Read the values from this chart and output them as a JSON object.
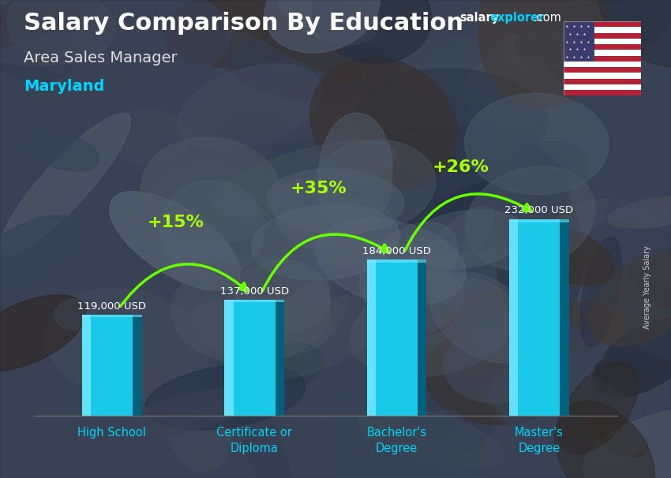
{
  "title": "Salary Comparison By Education",
  "subtitle": "Area Sales Manager",
  "location": "Maryland",
  "ylabel": "Average Yearly Salary",
  "categories": [
    "High School",
    "Certificate or\nDiploma",
    "Bachelor's\nDegree",
    "Master's\nDegree"
  ],
  "values": [
    119000,
    137000,
    184000,
    232000
  ],
  "value_labels": [
    "119,000 USD",
    "137,000 USD",
    "184,000 USD",
    "232,000 USD"
  ],
  "pct_labels": [
    "+15%",
    "+35%",
    "+26%"
  ],
  "bar_color_main": "#1ac8e8",
  "bar_color_light": "#70e8ff",
  "bar_color_dark": "#0088aa",
  "bar_color_darker": "#005570",
  "bg_color": "#4a5568",
  "bg_dark": "#1a202c",
  "title_color": "#ffffff",
  "subtitle_color": "#e0e0e0",
  "location_color": "#00d4ff",
  "value_label_color": "#ffffff",
  "pct_color": "#aaff00",
  "arrow_color": "#66ff00",
  "ylabel_color": "#cccccc",
  "xtick_color": "#00d4ff",
  "ylim": [
    0,
    310000
  ],
  "figsize": [
    8.5,
    6.06
  ],
  "dpi": 100,
  "brand_salary_color": "#ffffff",
  "brand_explorer_color": "#00d4ff",
  "brand_com_color": "#ffffff"
}
